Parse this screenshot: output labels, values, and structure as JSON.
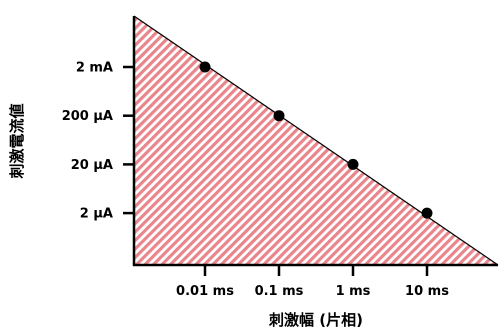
{
  "chart_data": {
    "type": "scatter",
    "title": "",
    "xlabel": "刺激幅 (片相)",
    "ylabel": "刺激電流値",
    "x_scale": "log",
    "y_scale": "log",
    "x_ticks": [
      {
        "value": 0.01,
        "label": "0.01 ms"
      },
      {
        "value": 0.1,
        "label": "0.1 ms"
      },
      {
        "value": 1,
        "label": "1 ms"
      },
      {
        "value": 10,
        "label": "10 ms"
      }
    ],
    "y_ticks": [
      {
        "value": 2,
        "label": "2 μA"
      },
      {
        "value": 20,
        "label": "20 μA"
      },
      {
        "value": 200,
        "label": "200 μA"
      },
      {
        "value": 2000,
        "label": "2 mA"
      }
    ],
    "series": [
      {
        "x": [
          0.01,
          0.1,
          1,
          10
        ],
        "y": [
          2000,
          200,
          20,
          2
        ]
      }
    ],
    "region": {
      "fill_color": "#e8868c",
      "hatch_color": "#ffffff",
      "edge_color": "#000000"
    },
    "point_color": "#000000",
    "grid": false
  }
}
